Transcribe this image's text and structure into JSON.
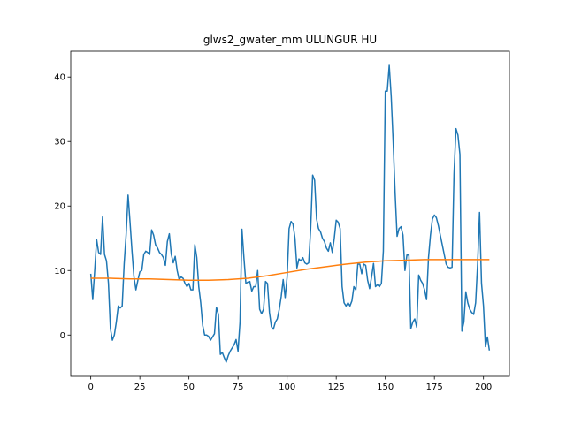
{
  "chart_data": {
    "type": "line",
    "title": "glws2_gwater_mm ULUNGUR HU",
    "x": [
      0,
      1,
      2,
      3,
      4,
      5,
      6,
      7,
      8,
      9,
      10,
      11,
      12,
      13,
      14,
      15,
      16,
      17,
      18,
      19,
      20,
      21,
      22,
      23,
      24,
      25,
      26,
      27,
      28,
      29,
      30,
      31,
      32,
      33,
      34,
      35,
      36,
      37,
      38,
      39,
      40,
      41,
      42,
      43,
      44,
      45,
      46,
      47,
      48,
      49,
      50,
      51,
      52,
      53,
      54,
      55,
      56,
      57,
      58,
      59,
      60,
      61,
      62,
      63,
      64,
      65,
      66,
      67,
      68,
      69,
      70,
      71,
      72,
      73,
      74,
      75,
      76,
      77,
      78,
      79,
      80,
      81,
      82,
      83,
      84,
      85,
      86,
      87,
      88,
      89,
      90,
      91,
      92,
      93,
      94,
      95,
      96,
      97,
      98,
      99,
      100,
      101,
      102,
      103,
      104,
      105,
      106,
      107,
      108,
      109,
      110,
      111,
      112,
      113,
      114,
      115,
      116,
      117,
      118,
      119,
      120,
      121,
      122,
      123,
      124,
      125,
      126,
      127,
      128,
      129,
      130,
      131,
      132,
      133,
      134,
      135,
      136,
      137,
      138,
      139,
      140,
      141,
      142,
      143,
      144,
      145,
      146,
      147,
      148,
      149,
      150,
      151,
      152,
      153,
      154,
      155,
      156,
      157,
      158,
      159,
      160,
      161,
      162,
      163,
      164,
      165,
      166,
      167,
      168,
      169,
      170,
      171,
      172,
      173,
      174,
      175,
      176,
      177,
      178,
      179,
      180,
      181,
      182,
      183,
      184,
      185,
      186,
      187,
      188,
      189,
      190,
      191,
      192,
      193,
      194,
      195,
      196,
      197,
      198,
      199,
      200,
      201,
      202,
      203
    ],
    "series": [
      {
        "color": "#1f77b4",
        "values": [
          9.5,
          5.5,
          10,
          14.8,
          12.8,
          12.5,
          18.3,
          12.5,
          11.5,
          8,
          1,
          -0.8,
          0,
          2,
          4.5,
          4.2,
          4.5,
          11,
          15.5,
          21.7,
          17.5,
          13,
          9,
          7,
          8.5,
          9.8,
          10,
          12.5,
          13,
          12.8,
          12.5,
          16.3,
          15.5,
          14,
          13.5,
          12.8,
          12.5,
          12,
          10.8,
          14.5,
          15.7,
          12.5,
          11.2,
          12.2,
          10,
          8.6,
          9,
          8.8,
          8,
          7.5,
          8,
          7,
          7,
          14,
          12,
          7.5,
          5,
          1.5,
          0,
          0,
          -0.2,
          -0.8,
          -0.3,
          0.2,
          4.3,
          3.2,
          -3,
          -2.7,
          -3.5,
          -4.2,
          -3.2,
          -2.5,
          -2,
          -1.5,
          -0.7,
          -2.5,
          2,
          16.4,
          12,
          8,
          8.2,
          8.3,
          6.8,
          7.5,
          7.5,
          10,
          4,
          3.3,
          4,
          8.3,
          8,
          3.5,
          1.3,
          0.9,
          2,
          2.5,
          4,
          6,
          8.6,
          5.8,
          9,
          16.5,
          17.6,
          17.2,
          15,
          10.4,
          11.8,
          11.5,
          12,
          11.2,
          11,
          11.2,
          16.5,
          24.8,
          24,
          18,
          16.5,
          16,
          15,
          14.5,
          13.5,
          13,
          14.3,
          12.8,
          15,
          17.8,
          17.5,
          16.5,
          7.5,
          5,
          4.5,
          5,
          4.5,
          5.3,
          7.5,
          7,
          11,
          11,
          9.5,
          11,
          10.8,
          8.5,
          7.2,
          9,
          11.1,
          7.5,
          7.8,
          7.5,
          8,
          13,
          37.8,
          37.8,
          41.8,
          37,
          30,
          22,
          15.3,
          16.5,
          16.8,
          15.5,
          10,
          12.4,
          12.5,
          1,
          2,
          2.5,
          1.2,
          9.3,
          8.5,
          8,
          7,
          5.5,
          12,
          15.5,
          18,
          18.6,
          18.2,
          17,
          15.5,
          14,
          12.5,
          11,
          10.5,
          10.4,
          10.5,
          25,
          32,
          31,
          28,
          0.6,
          2,
          6.7,
          5,
          4,
          3.5,
          3.2,
          5,
          11,
          19,
          8,
          4.5,
          -1.8,
          -0.3,
          -2.4
        ]
      },
      {
        "color": "#ff7f0e",
        "x": [
          0,
          10,
          20,
          30,
          40,
          50,
          60,
          70,
          80,
          90,
          100,
          110,
          120,
          130,
          140,
          150,
          160,
          170,
          180,
          190,
          203
        ],
        "values": [
          8.8,
          8.8,
          8.7,
          8.7,
          8.6,
          8.5,
          8.5,
          8.6,
          8.8,
          9.2,
          9.7,
          10.2,
          10.6,
          11.0,
          11.3,
          11.5,
          11.6,
          11.7,
          11.7,
          11.7,
          11.7
        ]
      }
    ],
    "xlim": [
      -10.2,
      213.2
    ],
    "ylim": [
      -6.4,
      44.0
    ],
    "xticks": [
      0,
      25,
      50,
      75,
      100,
      125,
      150,
      175,
      200
    ],
    "yticks": [
      0,
      10,
      20,
      30,
      40
    ]
  }
}
